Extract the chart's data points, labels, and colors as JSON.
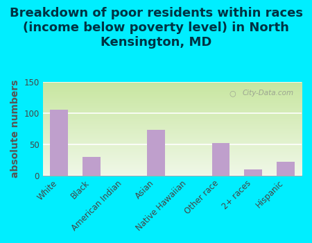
{
  "categories": [
    "White",
    "Black",
    "American Indian",
    "Asian",
    "Native Hawaiian",
    "Other race",
    "2+ races",
    "Hispanic"
  ],
  "values": [
    105,
    30,
    0,
    73,
    0,
    52,
    10,
    22
  ],
  "bar_color": "#bf9fcc",
  "title": "Breakdown of poor residents within races\n(income below poverty level) in North\nKensington, MD",
  "ylabel": "absolute numbers",
  "ylim": [
    0,
    150
  ],
  "yticks": [
    0,
    50,
    100,
    150
  ],
  "background_color": "#00eeff",
  "plot_bg_top": "#c8e6a0",
  "plot_bg_bottom": "#f0f8e8",
  "watermark": "City-Data.com",
  "title_fontsize": 13,
  "title_color": "#003344",
  "ylabel_fontsize": 10,
  "tick_fontsize": 8.5,
  "ylabel_color": "#555555"
}
